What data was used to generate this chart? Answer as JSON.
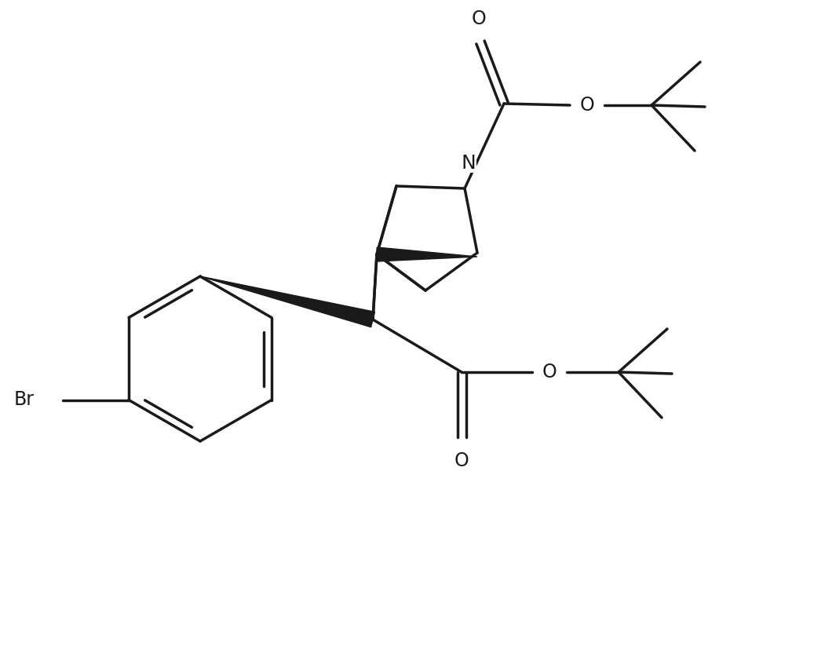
{
  "bg_color": "#ffffff",
  "line_color": "#1a1a1a",
  "line_width": 2.5,
  "font_size": 16,
  "figsize": [
    10.51,
    8.42
  ],
  "dpi": 100,
  "xlim": [
    0,
    10.51
  ],
  "ylim": [
    0,
    8.42
  ]
}
